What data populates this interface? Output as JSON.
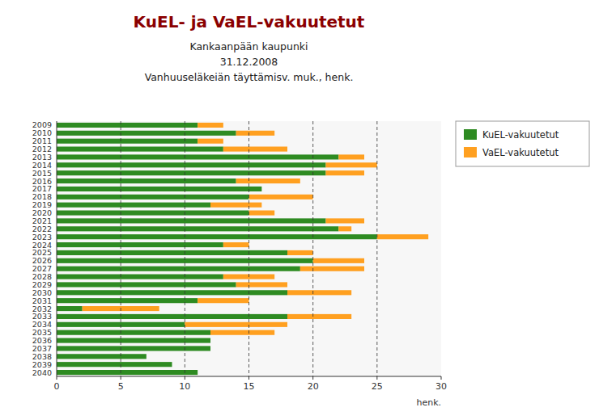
{
  "chart_data": {
    "type": "bar",
    "orientation": "horizontal",
    "stacked": true,
    "title": "KuEL- ja VaEL-vakuutetut",
    "subtitle": [
      "Kankaanpään kaupunki",
      "31.12.2008",
      "Vanhuuseläkeiän täyttämisv. muk., henk."
    ],
    "xlabel": "henk.",
    "categories": [
      "2009",
      "2010",
      "2011",
      "2012",
      "2013",
      "2014",
      "2015",
      "2016",
      "2017",
      "2018",
      "2019",
      "2020",
      "2021",
      "2022",
      "2023",
      "2024",
      "2025",
      "2026",
      "2027",
      "2028",
      "2029",
      "2030",
      "2031",
      "2032",
      "2033",
      "2034",
      "2035",
      "2036",
      "2037",
      "2038",
      "2039",
      "2040"
    ],
    "series": [
      {
        "name": "KuEL-vakuutetut",
        "color": "#2E8B22",
        "values": [
          11,
          14,
          11,
          13,
          22,
          21,
          21,
          14,
          16,
          15,
          12,
          15,
          21,
          22,
          25,
          13,
          18,
          20,
          19,
          13,
          14,
          18,
          11,
          2,
          18,
          10,
          12,
          12,
          12,
          7,
          9,
          11
        ]
      },
      {
        "name": "VaEL-vakuutetut",
        "color": "#FFA020",
        "values": [
          2,
          3,
          2,
          5,
          2,
          4,
          3,
          5,
          0,
          5,
          4,
          2,
          3,
          1,
          4,
          2,
          2,
          4,
          5,
          4,
          4,
          5,
          4,
          6,
          5,
          8,
          5,
          0,
          0,
          0,
          0,
          0
        ]
      }
    ],
    "xlim": [
      0,
      30
    ],
    "xticks": [
      0,
      5,
      10,
      15,
      20,
      25,
      30
    ],
    "grid": true,
    "legend": "right"
  }
}
